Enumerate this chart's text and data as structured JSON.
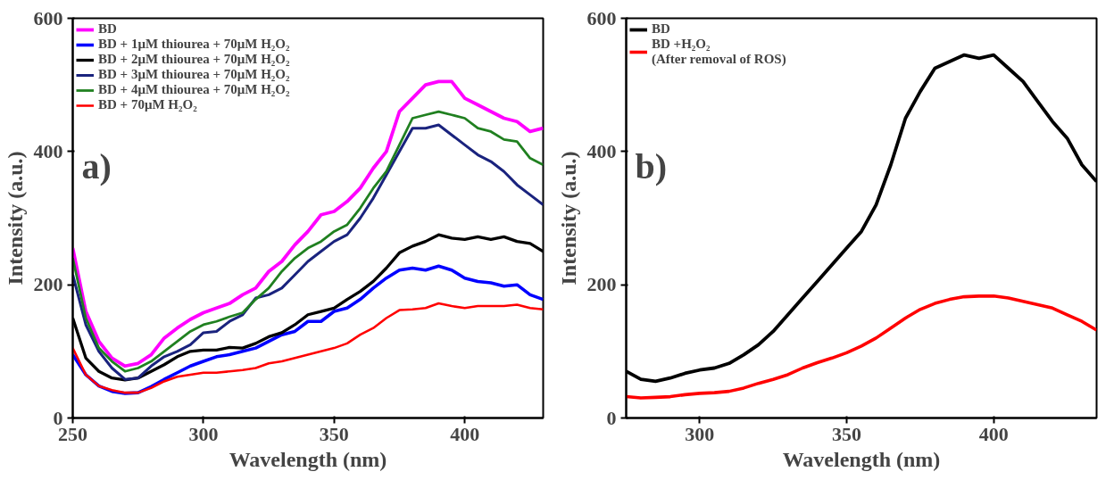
{
  "chart_data": [
    {
      "type": "line",
      "xlabel": "Wavelength (nm)",
      "ylabel": "Intensity (a.u.)",
      "annotations": [
        "a)"
      ],
      "x": [
        250,
        255,
        260,
        265,
        270,
        275,
        280,
        285,
        290,
        295,
        300,
        305,
        310,
        315,
        320,
        325,
        330,
        335,
        340,
        345,
        350,
        355,
        360,
        365,
        370,
        375,
        380,
        385,
        390,
        395,
        400,
        405,
        410,
        415,
        420,
        425,
        430
      ],
      "series": [
        {
          "name": "BD",
          "color": "#ff00ff",
          "values": [
            255,
            160,
            115,
            90,
            78,
            82,
            95,
            120,
            135,
            148,
            158,
            165,
            172,
            185,
            195,
            220,
            235,
            260,
            280,
            305,
            310,
            325,
            345,
            375,
            400,
            460,
            480,
            500,
            505,
            505,
            480,
            470,
            460,
            450,
            445,
            430,
            435
          ]
        },
        {
          "name": "BD + 1μM thiourea + 70μM H₂O₂",
          "color": "#0000ff",
          "values": [
            95,
            65,
            48,
            40,
            37,
            38,
            47,
            58,
            68,
            78,
            85,
            92,
            95,
            100,
            105,
            115,
            125,
            130,
            145,
            145,
            160,
            165,
            178,
            195,
            210,
            222,
            225,
            222,
            228,
            222,
            210,
            205,
            203,
            198,
            200,
            185,
            178
          ]
        },
        {
          "name": "BD + 2μM thiourea + 70μM H₂O₂",
          "color": "#000000",
          "values": [
            150,
            90,
            70,
            60,
            57,
            60,
            70,
            80,
            92,
            100,
            102,
            102,
            106,
            105,
            112,
            122,
            128,
            140,
            155,
            160,
            165,
            178,
            190,
            205,
            225,
            248,
            258,
            265,
            275,
            270,
            268,
            272,
            268,
            272,
            265,
            262,
            250
          ]
        },
        {
          "name": "BD + 3μM thiourea + 70μM H₂O₂",
          "color": "#1a237e",
          "values": [
            215,
            140,
            100,
            75,
            58,
            60,
            78,
            92,
            100,
            110,
            128,
            130,
            145,
            155,
            180,
            185,
            195,
            215,
            235,
            250,
            265,
            275,
            300,
            330,
            365,
            400,
            435,
            435,
            440,
            425,
            410,
            395,
            385,
            370,
            350,
            335,
            320
          ]
        },
        {
          "name": "BD + 4μM thiourea + 70μM H₂O₂",
          "color": "#208020",
          "values": [
            240,
            150,
            105,
            85,
            70,
            75,
            85,
            100,
            115,
            130,
            140,
            145,
            152,
            158,
            178,
            195,
            220,
            240,
            255,
            265,
            280,
            290,
            315,
            345,
            370,
            410,
            450,
            455,
            460,
            455,
            450,
            435,
            430,
            418,
            415,
            390,
            380
          ]
        },
        {
          "name": "BD + 70μM H₂O₂",
          "color": "#ff0000",
          "values": [
            105,
            65,
            48,
            42,
            38,
            38,
            45,
            55,
            62,
            65,
            68,
            68,
            70,
            72,
            75,
            82,
            85,
            90,
            95,
            100,
            105,
            112,
            125,
            135,
            150,
            162,
            163,
            165,
            172,
            168,
            165,
            168,
            168,
            168,
            170,
            165,
            163
          ]
        }
      ],
      "xlim": [
        250,
        430
      ],
      "ylim": [
        0,
        600
      ],
      "xticks": [
        250,
        300,
        350,
        400
      ],
      "yticks": [
        0,
        200,
        400,
        600
      ],
      "legend": "top left",
      "grid": false
    },
    {
      "type": "line",
      "xlabel": "Wavelength (nm)",
      "ylabel": "Intensity (a.u.)",
      "annotations": [
        "b)"
      ],
      "x": [
        275,
        280,
        285,
        290,
        295,
        300,
        305,
        310,
        315,
        320,
        325,
        330,
        335,
        340,
        345,
        350,
        355,
        360,
        365,
        370,
        375,
        380,
        385,
        390,
        395,
        400,
        405,
        410,
        415,
        420,
        425,
        430,
        435
      ],
      "series": [
        {
          "name": "BD",
          "color": "#000000",
          "values": [
            70,
            58,
            55,
            60,
            67,
            72,
            75,
            82,
            95,
            110,
            130,
            155,
            180,
            205,
            230,
            255,
            280,
            320,
            380,
            450,
            490,
            525,
            535,
            545,
            540,
            545,
            525,
            505,
            475,
            445,
            420,
            380,
            355
          ]
        },
        {
          "name": "BD +H₂O₂\n(After removal of ROS)",
          "color": "#ff0000",
          "values": [
            32,
            30,
            31,
            32,
            35,
            37,
            38,
            40,
            45,
            52,
            58,
            65,
            75,
            83,
            90,
            98,
            108,
            120,
            135,
            150,
            163,
            172,
            178,
            182,
            183,
            183,
            180,
            175,
            170,
            165,
            155,
            145,
            132
          ]
        }
      ],
      "xlim": [
        275,
        435
      ],
      "ylim": [
        0,
        600
      ],
      "xticks": [
        300,
        350,
        400
      ],
      "yticks": [
        0,
        200,
        400,
        600
      ],
      "legend": "top left",
      "grid": false
    }
  ]
}
